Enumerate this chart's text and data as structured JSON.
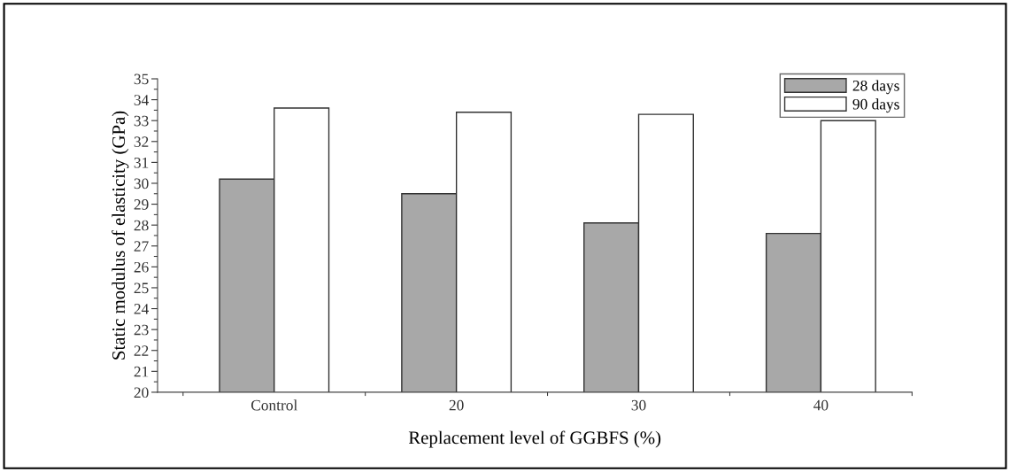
{
  "chart_data": {
    "type": "bar",
    "categories": [
      "Control",
      "20",
      "30",
      "40"
    ],
    "xlabel": "Replacement level of GGBFS (%)",
    "ylabel": "Static modulus of elasticity (GPa)",
    "series": [
      {
        "name": "28 days",
        "color": "#a8a8a8",
        "values": [
          30.2,
          29.5,
          28.1,
          27.6
        ]
      },
      {
        "name": "90 days",
        "color": "#ffffff",
        "values": [
          33.6,
          33.4,
          33.3,
          33.0
        ]
      }
    ],
    "ylim": [
      20,
      35
    ],
    "yticks": [
      20,
      21,
      22,
      23,
      24,
      25,
      26,
      27,
      28,
      29,
      30,
      31,
      32,
      33,
      34,
      35
    ],
    "legend": "top right",
    "grid": false
  }
}
